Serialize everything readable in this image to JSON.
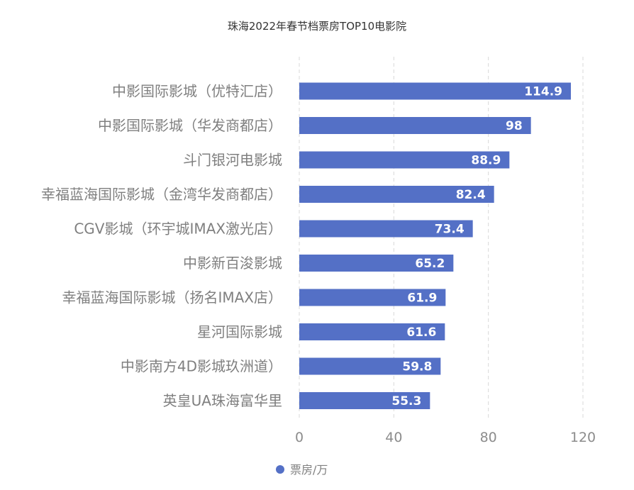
{
  "chart_data": {
    "type": "bar",
    "orientation": "horizontal",
    "title": "珠海2022年春节档票房TOP10电影院",
    "categories": [
      "中影国际影城（优特汇店）",
      "中影国际影城（华发商都店）",
      "斗门银河电影城",
      "幸福蓝海国际影城（金湾华发商都店）",
      "CGV影城（环宇城IMAX激光店）",
      "中影新百浚影城",
      "幸福蓝海国际影城（扬名IMAX店）",
      "星河国际影城",
      "中影南方4D影城玖洲道）",
      "英皇UA珠海富华里"
    ],
    "series": [
      {
        "name": "票房/万",
        "values": [
          114.9,
          98,
          88.9,
          82.4,
          73.4,
          65.2,
          61.9,
          61.6,
          59.8,
          55.3
        ],
        "value_labels": [
          "114.9",
          "98",
          "88.9",
          "82.4",
          "73.4",
          "65.2",
          "61.9",
          "61.6",
          "59.8",
          "55.3"
        ]
      }
    ],
    "xlim": [
      0,
      120
    ],
    "x_ticks": [
      "0",
      "40",
      "80",
      "120"
    ],
    "grid": "vertical dashed",
    "legend_position": "bottom-center",
    "bar_color": "#5470c6"
  }
}
